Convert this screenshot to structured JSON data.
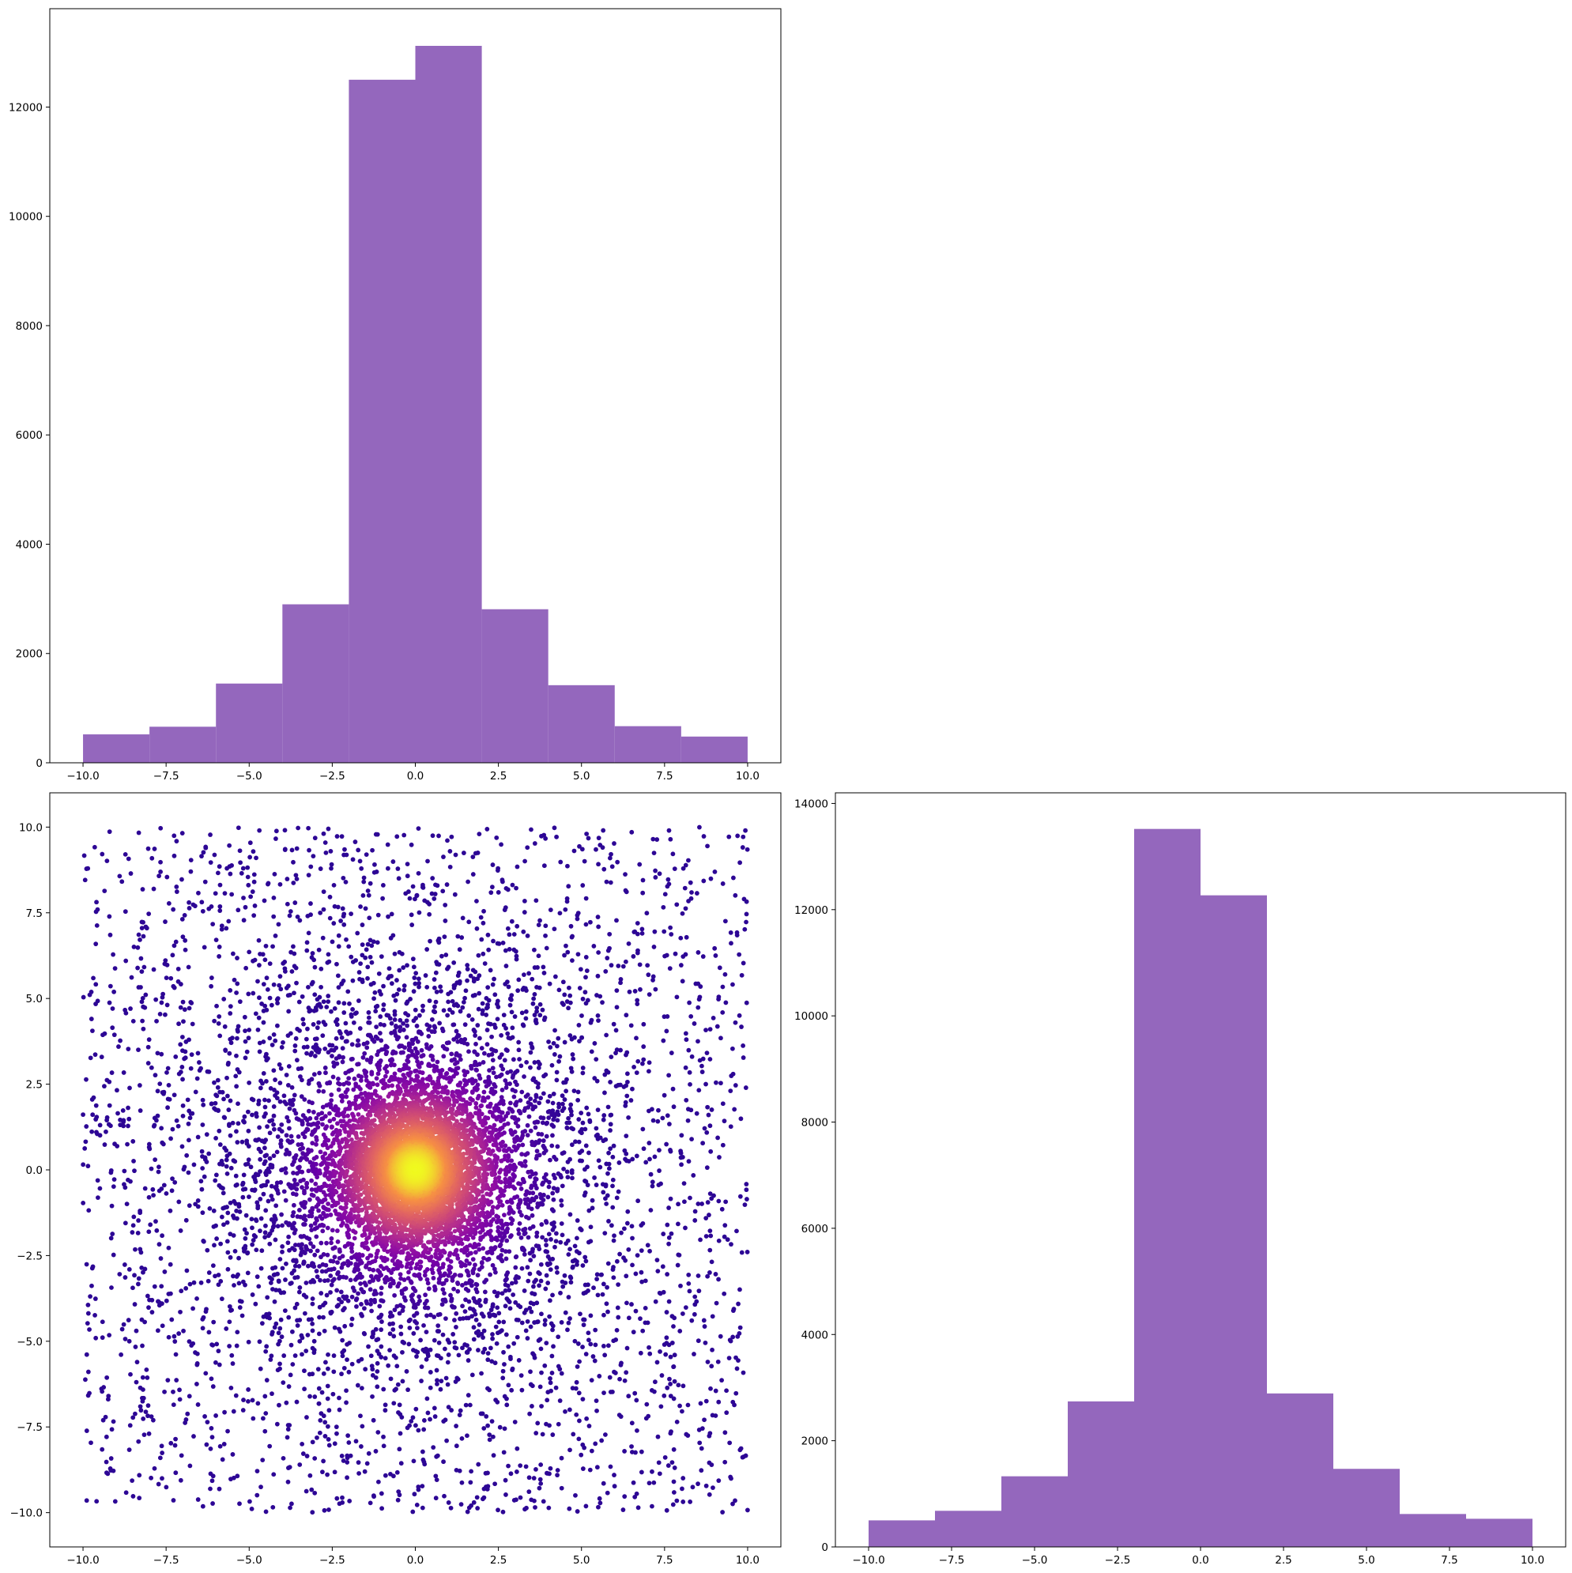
{
  "figure": {
    "background": "#ffffff",
    "description_colors": {
      "bar_color": "#9467bd",
      "scatter_colormap": "plasma",
      "scatter_low_color": "#2a0593",
      "scatter_high_color": "#f0f921"
    }
  },
  "chart_data": [
    {
      "id": "top-left",
      "type": "bar",
      "subtype": "histogram",
      "bin_edges": [
        -10,
        -8,
        -6,
        -4,
        -2,
        0,
        2,
        4,
        6,
        8,
        10
      ],
      "values": [
        520,
        660,
        1450,
        2900,
        12500,
        13120,
        2810,
        1420,
        670,
        480
      ],
      "xlim": [
        -11,
        11
      ],
      "ylim": [
        0,
        13800
      ],
      "xticks": [
        -10.0,
        -7.5,
        -5.0,
        -2.5,
        0.0,
        2.5,
        5.0,
        7.5,
        10.0
      ],
      "xtick_labels": [
        "−10.0",
        "−7.5",
        "−5.0",
        "−2.5",
        "0.0",
        "2.5",
        "5.0",
        "7.5",
        "10.0"
      ],
      "yticks": [
        0,
        2000,
        4000,
        6000,
        8000,
        10000,
        12000
      ],
      "ytick_labels": [
        "0",
        "2000",
        "4000",
        "6000",
        "8000",
        "10000",
        "12000"
      ],
      "color": "#9467bd",
      "grid": false
    },
    {
      "id": "bottom-left",
      "type": "scatter",
      "x_range": [
        -10,
        10
      ],
      "y_range": [
        -10,
        10
      ],
      "distribution": "dense radial cluster at (0, 0) with uniform background points across [-10, 10] x [-10, 10]",
      "color_by": "density (plasma colormap, bright yellow at center, dark indigo at edges)",
      "xlim": [
        -11,
        11
      ],
      "ylim": [
        -11,
        11
      ],
      "xticks": [
        -10.0,
        -7.5,
        -5.0,
        -2.5,
        0.0,
        2.5,
        5.0,
        7.5,
        10.0
      ],
      "xtick_labels": [
        "−10.0",
        "−7.5",
        "−5.0",
        "−2.5",
        "0.0",
        "2.5",
        "5.0",
        "7.5",
        "10.0"
      ],
      "yticks": [
        -10.0,
        -7.5,
        -5.0,
        -2.5,
        0.0,
        2.5,
        5.0,
        7.5,
        10.0
      ],
      "ytick_labels": [
        "−10.0",
        "−7.5",
        "−5.0",
        "−2.5",
        "0.0",
        "2.5",
        "5.0",
        "7.5",
        "10.0"
      ],
      "grid": false
    },
    {
      "id": "bottom-right",
      "type": "bar",
      "subtype": "histogram",
      "bin_edges": [
        -10,
        -8,
        -6,
        -4,
        -2,
        0,
        2,
        4,
        6,
        8,
        10
      ],
      "values": [
        500,
        680,
        1330,
        2740,
        13520,
        12270,
        2890,
        1470,
        620,
        530
      ],
      "xlim": [
        -11,
        11
      ],
      "ylim": [
        0,
        14200
      ],
      "xticks": [
        -10.0,
        -7.5,
        -5.0,
        -2.5,
        0.0,
        2.5,
        5.0,
        7.5,
        10.0
      ],
      "xtick_labels": [
        "−10.0",
        "−7.5",
        "−5.0",
        "−2.5",
        "0.0",
        "2.5",
        "5.0",
        "7.5",
        "10.0"
      ],
      "yticks": [
        0,
        2000,
        4000,
        6000,
        8000,
        10000,
        12000,
        14000
      ],
      "ytick_labels": [
        "0",
        "2000",
        "4000",
        "6000",
        "8000",
        "10000",
        "12000",
        "14000"
      ],
      "color": "#9467bd",
      "grid": false
    }
  ]
}
